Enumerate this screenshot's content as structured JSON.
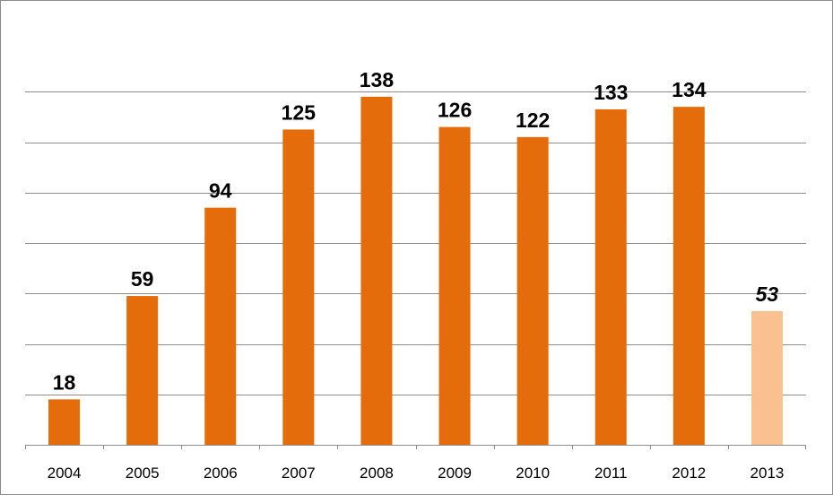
{
  "chart_data": {
    "type": "bar",
    "categories": [
      "2004",
      "2005",
      "2006",
      "2007",
      "2008",
      "2009",
      "2010",
      "2011",
      "2012",
      "2013"
    ],
    "values": [
      18,
      59,
      94,
      125,
      138,
      126,
      122,
      133,
      134,
      53
    ],
    "data_labels": [
      "18",
      "59",
      "94",
      "125",
      "138",
      "126",
      "122",
      "133",
      "134",
      "53"
    ],
    "title": "",
    "xlabel": "",
    "ylabel": "",
    "ylim": [
      0,
      160
    ],
    "y_gridline_step": 20,
    "y_tick_labels_shown": false,
    "grid": true,
    "legend": "none",
    "colors": {
      "bar": "#E46C0A",
      "highlight_bar": "#FAC090",
      "gridline": "#8c8c8c",
      "frame": "#8c8c8c"
    },
    "highlighted_category": "2013",
    "highlighted_label_style": "italic"
  }
}
